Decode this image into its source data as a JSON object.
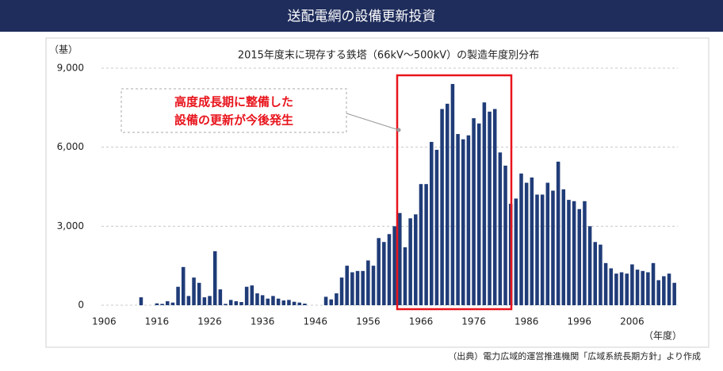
{
  "header": {
    "title": "送配電網の設備更新投資"
  },
  "chart_data": {
    "type": "bar",
    "title": "2015年度末に現存する鉄塔（66kV～500kV）の製造年度別分布",
    "y_label": "（基）",
    "x_label": "（年度）",
    "annotation": [
      "高度成長期に整備した",
      "設備の更新が今後発生"
    ],
    "color": "#203c78",
    "grid": true,
    "x": [
      1913,
      1914,
      1915,
      1916,
      1917,
      1918,
      1919,
      1920,
      1921,
      1922,
      1923,
      1924,
      1925,
      1926,
      1927,
      1928,
      1929,
      1930,
      1931,
      1932,
      1933,
      1934,
      1935,
      1936,
      1937,
      1938,
      1939,
      1940,
      1941,
      1942,
      1943,
      1944,
      1945,
      1946,
      1947,
      1948,
      1949,
      1950,
      1951,
      1952,
      1953,
      1954,
      1955,
      1956,
      1957,
      1958,
      1959,
      1960,
      1961,
      1962,
      1963,
      1964,
      1965,
      1966,
      1967,
      1968,
      1969,
      1970,
      1971,
      1972,
      1973,
      1974,
      1975,
      1976,
      1977,
      1978,
      1979,
      1980,
      1981,
      1982,
      1983,
      1984,
      1985,
      1986,
      1987,
      1988,
      1989,
      1990,
      1991,
      1992,
      1993,
      1994,
      1995,
      1996,
      1997,
      1998,
      1999,
      2000,
      2001,
      2002,
      2003,
      2004,
      2005,
      2006,
      2007,
      2008,
      2009,
      2010,
      2011,
      2012,
      2013,
      2014
    ],
    "values": [
      300,
      0,
      0,
      70,
      50,
      150,
      100,
      700,
      1450,
      350,
      1050,
      850,
      300,
      350,
      2050,
      600,
      50,
      200,
      150,
      120,
      700,
      750,
      450,
      380,
      250,
      350,
      250,
      180,
      200,
      130,
      100,
      60,
      0,
      0,
      0,
      320,
      220,
      450,
      1050,
      1500,
      1250,
      1300,
      1300,
      1700,
      1500,
      2550,
      2400,
      2700,
      3000,
      3500,
      2200,
      3300,
      3450,
      4600,
      4600,
      6200,
      5900,
      7450,
      7650,
      8400,
      6500,
      6300,
      6450,
      7100,
      6900,
      7700,
      7350,
      7450,
      5800,
      5300,
      3850,
      4050,
      5000,
      4650,
      4850,
      4200,
      4200,
      4650,
      4350,
      5450,
      4400,
      4000,
      3950,
      3650,
      3950,
      3000,
      2400,
      2300,
      1600,
      1400,
      1200,
      1250,
      1200,
      1550,
      1350,
      1300,
      1250,
      1600,
      950,
      1100,
      1200,
      850
    ],
    "xlim": [
      1904,
      2016
    ],
    "xticks": [
      1906,
      1916,
      1926,
      1936,
      1946,
      1956,
      1966,
      1976,
      1986,
      1996,
      2006
    ],
    "ylim": [
      0,
      9000
    ],
    "yticks": [
      0,
      {
        "value": 3000,
        "label": "3,000"
      },
      {
        "value": 6000,
        "label": "6,000"
      },
      {
        "value": 9000,
        "label": "9,000"
      }
    ]
  },
  "source": "（出典）電力広域的運営推進機関「広域系統長期方針」より作成"
}
